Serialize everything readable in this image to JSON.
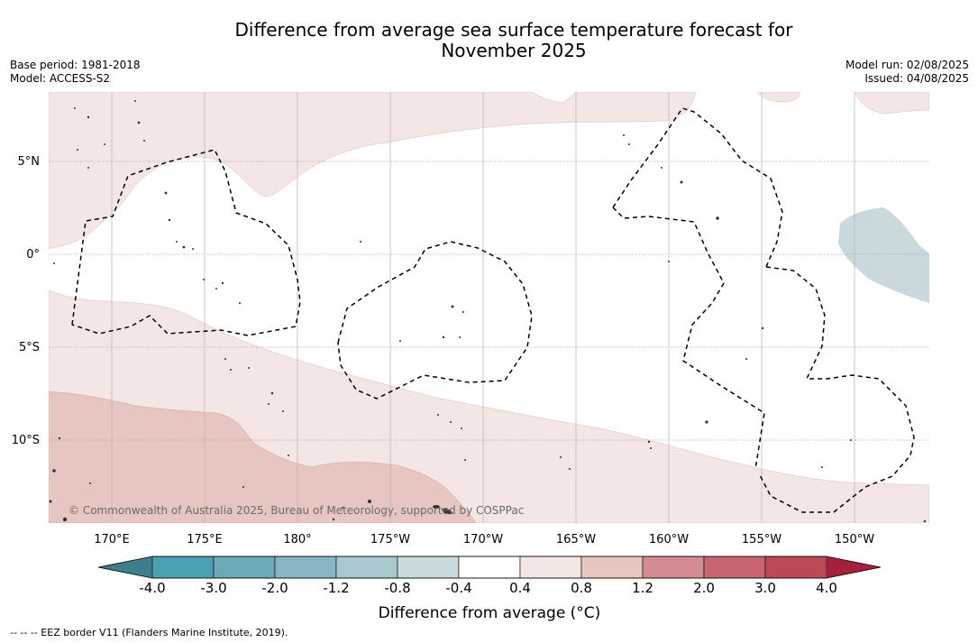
{
  "title": {
    "line1": "Difference from average sea surface temperature forecast for",
    "line2": "November 2025"
  },
  "meta": {
    "base_period": "Base period: 1981-2018",
    "model": "Model: ACCESS-S2",
    "model_run": "Model run: 02/08/2025",
    "issued": "Issued: 04/08/2025"
  },
  "map": {
    "lat_labels": [
      "5°N",
      "0°",
      "5°S",
      "10°S"
    ],
    "lon_labels": [
      "170°E",
      "175°E",
      "180°",
      "175°W",
      "170°W",
      "165°W",
      "160°W",
      "155°W",
      "150°W"
    ],
    "copyright": "© Commonwealth of Australia 2025, Bureau of Meteorology, supported by COSPPac",
    "land_color": "#333333",
    "eez_border": "dashed black"
  },
  "colorbar": {
    "title": "Difference from average (°C)",
    "labels": [
      "-4.0",
      "-3.0",
      "-2.0",
      "-1.2",
      "-0.8",
      "-0.4",
      "0.4",
      "0.8",
      "1.2",
      "2.0",
      "3.0",
      "4.0"
    ],
    "colors": [
      "#3c7f88",
      "#4ba1b2",
      "#6aaab9",
      "#88b6c2",
      "#a8c8cd",
      "#c9d9dc",
      "#ffffff",
      "#f3e6e4",
      "#e7c6c1",
      "#d48b91",
      "#c96570",
      "#bd4858",
      "#a6203d"
    ]
  },
  "footer": "-- -- -- EEZ border V11 (Flanders Marine Institute, 2019)."
}
